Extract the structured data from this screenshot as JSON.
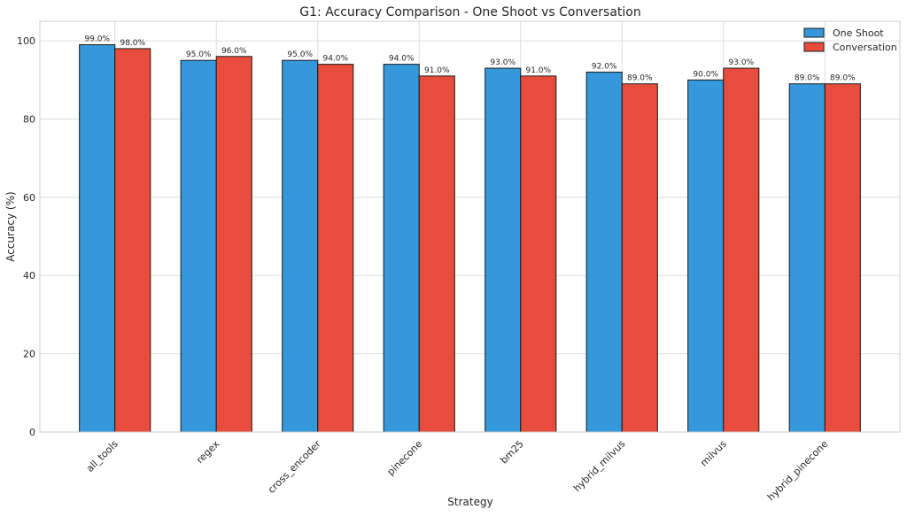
{
  "chart_data": {
    "type": "bar",
    "title": "G1: Accuracy Comparison - One Shoot vs Conversation",
    "xlabel": "Strategy",
    "ylabel": "Accuracy (%)",
    "ylim": [
      0,
      105
    ],
    "yticks": [
      0,
      20,
      40,
      60,
      80,
      100
    ],
    "grid": true,
    "legend_position": "top-right",
    "categories": [
      "all_tools",
      "regex",
      "cross_encoder",
      "pinecone",
      "bm25",
      "hybrid_milvus",
      "milvus",
      "hybrid_pinecone"
    ],
    "series": [
      {
        "name": "One Shoot",
        "color": "#3498db",
        "values": [
          99.0,
          95.0,
          95.0,
          94.0,
          93.0,
          92.0,
          90.0,
          89.0
        ],
        "labels": [
          "99.0%",
          "95.0%",
          "95.0%",
          "94.0%",
          "93.0%",
          "92.0%",
          "90.0%",
          "89.0%"
        ]
      },
      {
        "name": "Conversation",
        "color": "#e74c3c",
        "values": [
          98.0,
          96.0,
          94.0,
          91.0,
          91.0,
          89.0,
          93.0,
          89.0
        ],
        "labels": [
          "98.0%",
          "96.0%",
          "94.0%",
          "91.0%",
          "91.0%",
          "89.0%",
          "93.0%",
          "89.0%"
        ]
      }
    ]
  }
}
